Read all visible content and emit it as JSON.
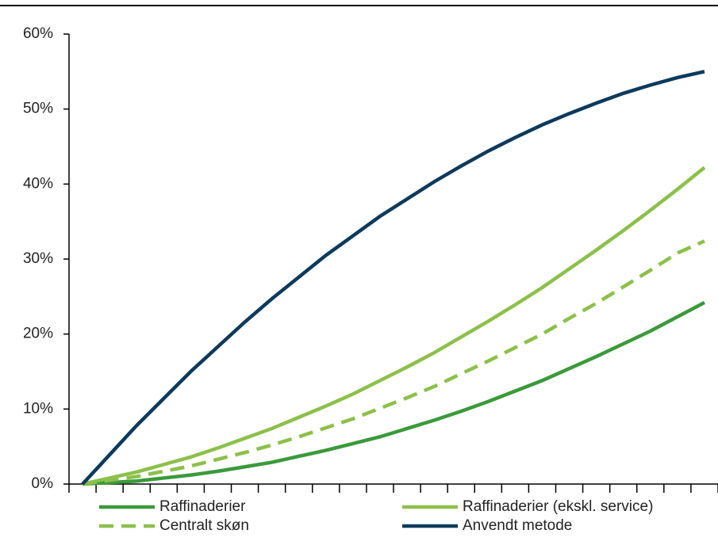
{
  "chart_data": {
    "type": "line",
    "categories": [
      null,
      null,
      null,
      null,
      null,
      null,
      null,
      null,
      null,
      null,
      null,
      null,
      null,
      null,
      null,
      null,
      null,
      null,
      null,
      null,
      null,
      null,
      null,
      null
    ],
    "series": [
      {
        "name": "Raffinaderier",
        "color": "#3a9a3a",
        "dashed": false,
        "values": [
          0,
          0.2,
          0.4,
          0.8,
          1.2,
          1.7,
          2.3,
          2.9,
          3.7,
          4.5,
          5.4,
          6.3,
          7.4,
          8.5,
          9.7,
          11.0,
          12.4,
          13.8,
          15.4,
          17.0,
          18.7,
          20.4,
          22.3,
          24.2
        ]
      },
      {
        "name": "Raffinaderier (ekskl. service)",
        "color": "#8cc04a",
        "dashed": false,
        "values": [
          0,
          0.8,
          1.6,
          2.6,
          3.6,
          4.8,
          6.1,
          7.4,
          8.9,
          10.4,
          12.0,
          13.8,
          15.6,
          17.5,
          19.6,
          21.7,
          23.9,
          26.2,
          28.7,
          31.2,
          33.8,
          36.5,
          39.3,
          42.2
        ]
      },
      {
        "name": "Centralt skøn",
        "color": "#8cc04a",
        "dashed": true,
        "values": [
          0,
          0.5,
          1.0,
          1.7,
          2.4,
          3.3,
          4.2,
          5.2,
          6.3,
          7.5,
          8.7,
          10.1,
          11.5,
          13.0,
          14.7,
          16.4,
          18.2,
          20.0,
          22.1,
          24.1,
          26.3,
          28.5,
          30.8,
          32.4
        ]
      },
      {
        "name": "Anvendt metode",
        "color": "#0d3a5c",
        "dashed": false,
        "values": [
          0,
          3.9,
          7.8,
          11.4,
          15.0,
          18.3,
          21.6,
          24.7,
          27.6,
          30.5,
          33.1,
          35.7,
          38.0,
          40.3,
          42.4,
          44.4,
          46.2,
          47.9,
          49.4,
          50.8,
          52.1,
          53.2,
          54.2,
          55.0
        ]
      }
    ],
    "ylim": [
      0,
      60
    ],
    "yticks": [
      {
        "value": 0,
        "label": "0%"
      },
      {
        "value": 10,
        "label": "10%"
      },
      {
        "value": 20,
        "label": "20%"
      },
      {
        "value": 30,
        "label": "30%"
      },
      {
        "value": 40,
        "label": "40%"
      },
      {
        "value": 50,
        "label": "50%"
      },
      {
        "value": 60,
        "label": "60%"
      }
    ],
    "legend": "bottom"
  }
}
